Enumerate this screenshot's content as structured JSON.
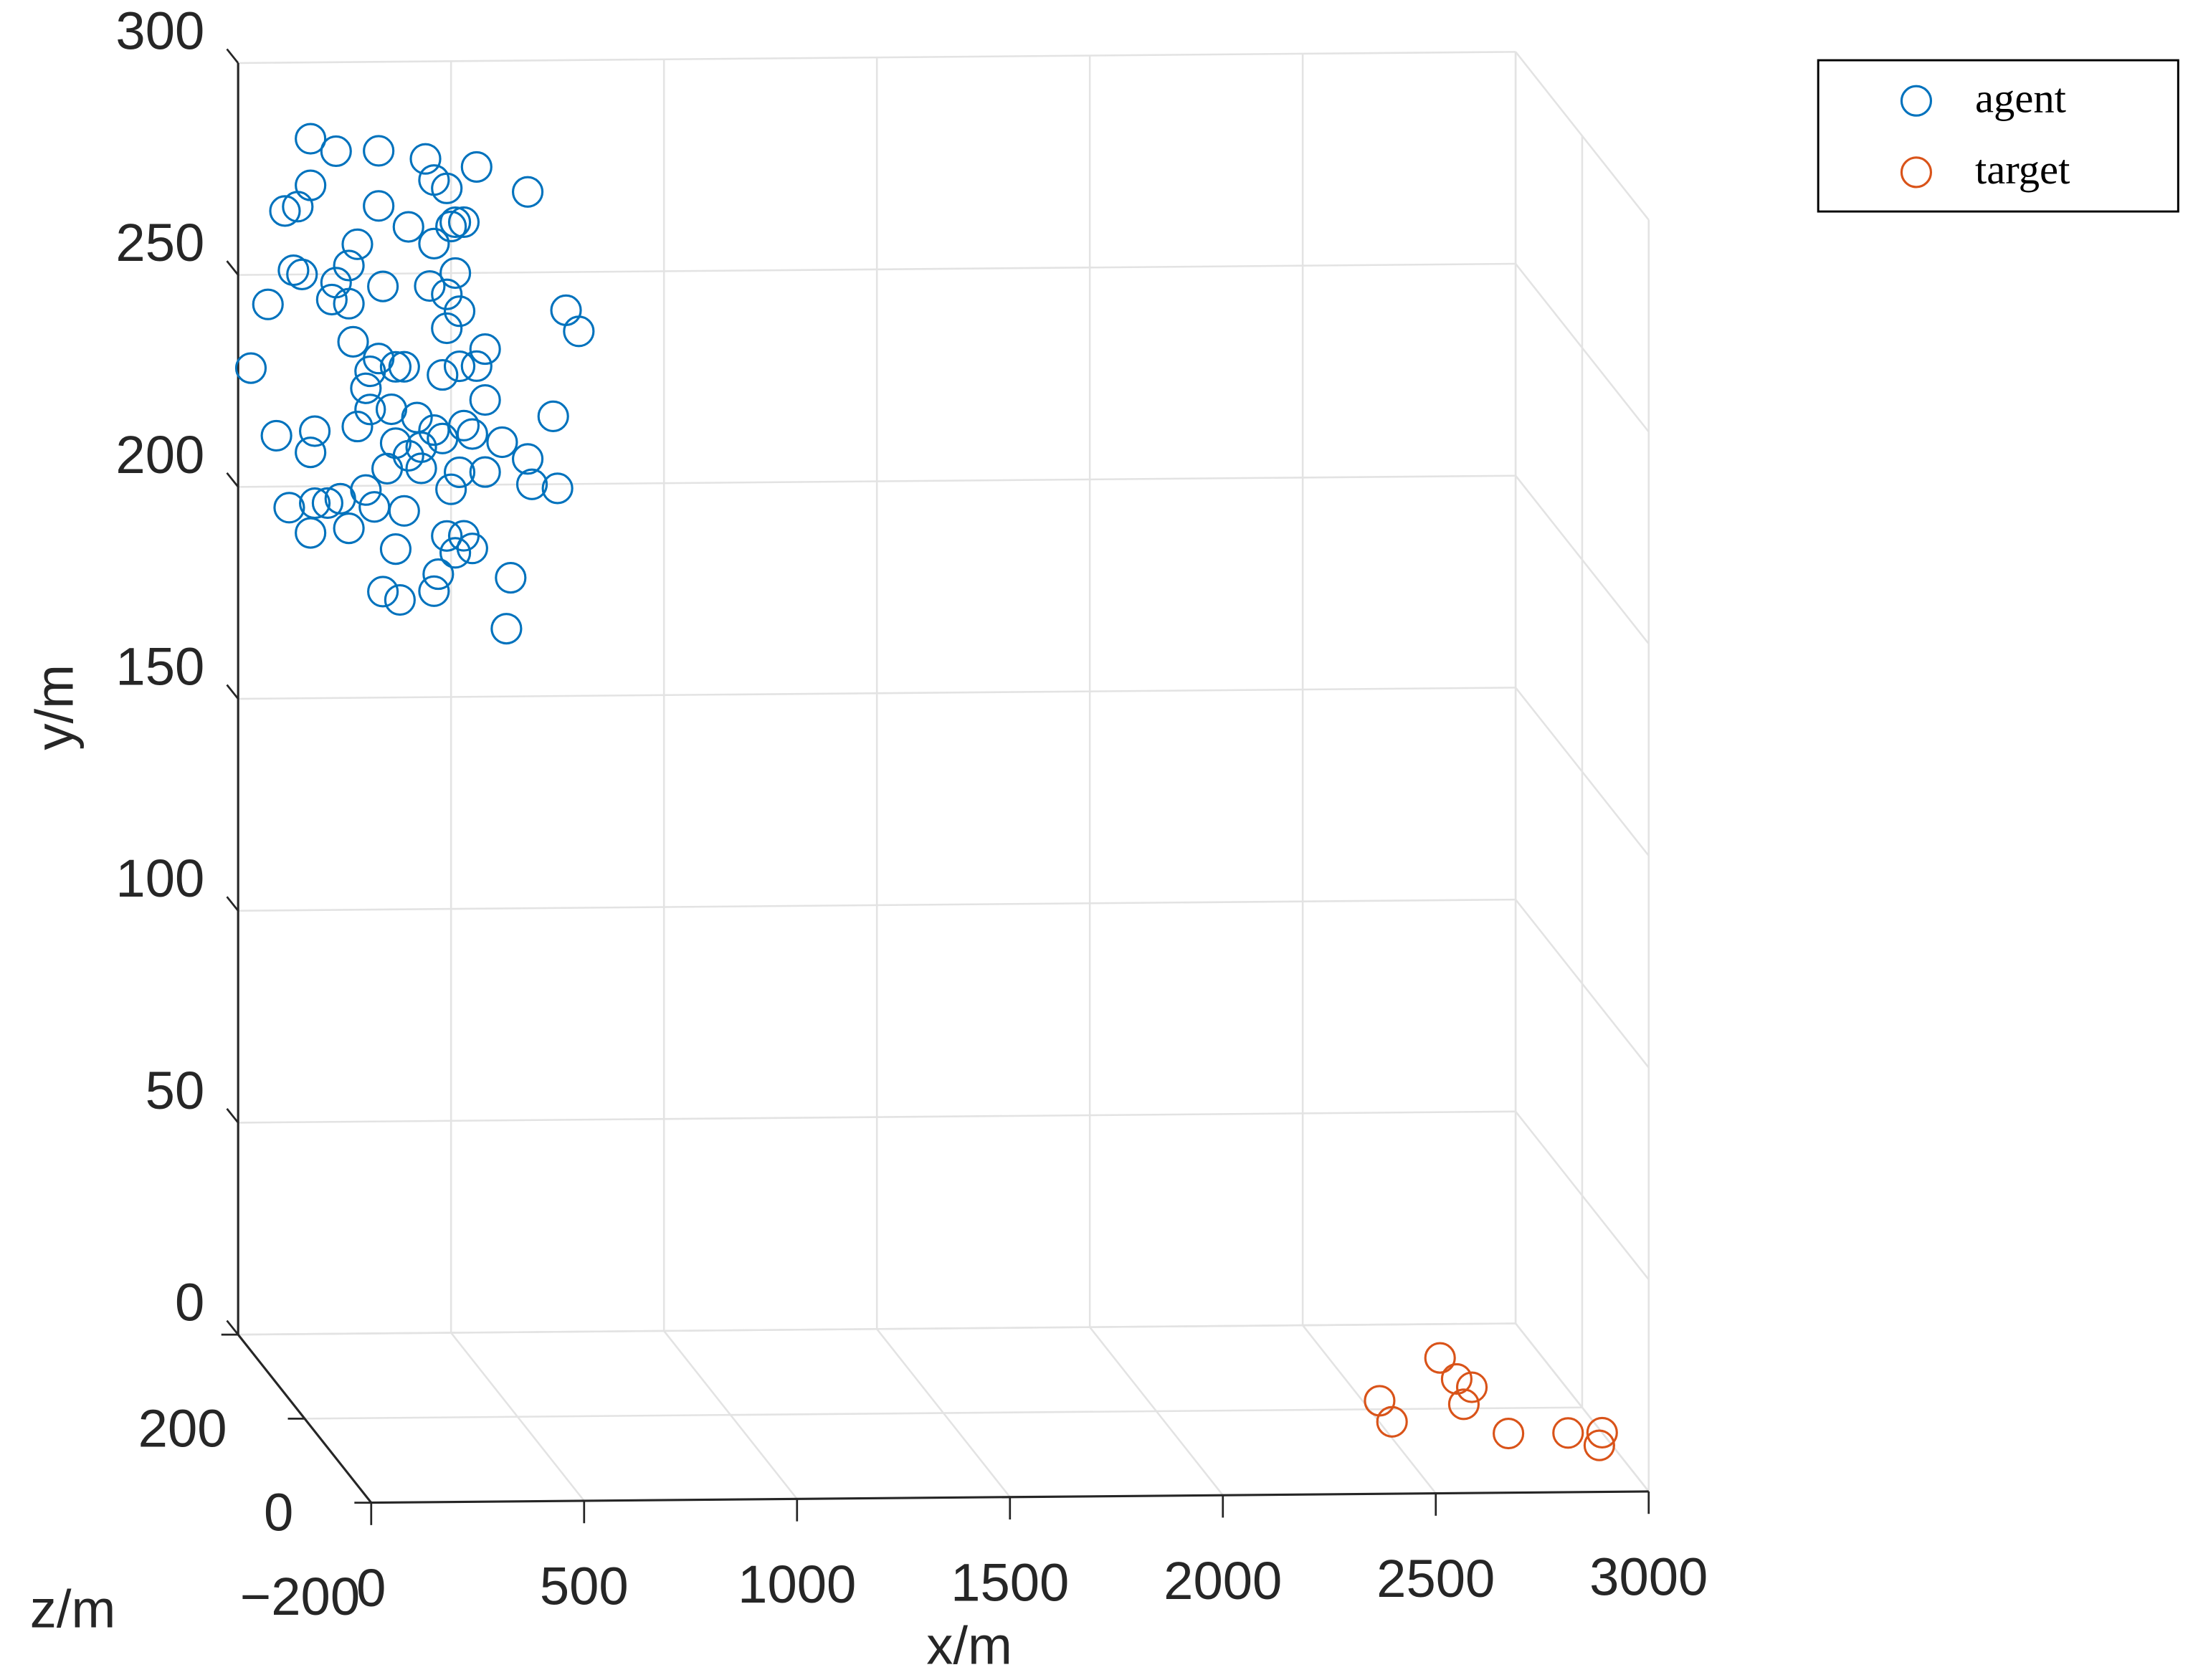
{
  "chart_data": {
    "type": "scatter3",
    "xlabel": "x/m",
    "ylabel": "y/m",
    "zlabel": "z/m",
    "xlim": [
      0,
      3000
    ],
    "ylim": [
      0,
      300
    ],
    "zlim": [
      -200,
      200
    ],
    "xticks": [
      0,
      500,
      1000,
      1500,
      2000,
      2500,
      3000
    ],
    "yticks": [
      0,
      50,
      100,
      150,
      200,
      250,
      300
    ],
    "zticks": [
      {
        "value": -200,
        "label": "−200"
      },
      0,
      200
    ],
    "grid": true,
    "legend_location": "northeastoutside",
    "series": [
      {
        "name": "agent",
        "color": "#0072bd",
        "x": [
          170,
          230,
          330,
          440,
          560,
          170,
          140,
          110,
          460,
          490,
          680,
          330,
          400,
          510,
          530,
          500,
          280,
          460,
          260,
          130,
          150,
          510,
          230,
          340,
          450,
          490,
          70,
          220,
          260,
          520,
          770,
          800,
          490,
          270,
          580,
          330,
          30,
          390,
          310,
          370,
          520,
          560,
          300,
          480,
          580,
          310,
          360,
          420,
          90,
          180,
          280,
          460,
          740,
          530,
          550,
          170,
          370,
          400,
          430,
          480,
          620,
          680,
          350,
          430,
          520,
          580,
          690,
          750,
          300,
          240,
          180,
          210,
          120,
          320,
          500,
          390,
          170,
          260,
          490,
          530,
          550,
          370,
          470,
          640,
          340,
          380,
          460,
          630,
          510
        ],
        "y": [
          282,
          279,
          279,
          277,
          275,
          271,
          266,
          265,
          272,
          270,
          269,
          266,
          261,
          262,
          262,
          261,
          257,
          257,
          252,
          251,
          250,
          250,
          248,
          247,
          247,
          245,
          243,
          244,
          243,
          241,
          241,
          236,
          237,
          234,
          232,
          230,
          228,
          228,
          227,
          228,
          228,
          228,
          223,
          226,
          220,
          218,
          218,
          216,
          212,
          213,
          214,
          213,
          216,
          214,
          212,
          208,
          210,
          207,
          209,
          211,
          210,
          206,
          204,
          204,
          203,
          203,
          200,
          199,
          199,
          197,
          196,
          196,
          195,
          195,
          199,
          194,
          189,
          190,
          188,
          188,
          185,
          185,
          179,
          178,
          175,
          173,
          175,
          166,
          184
        ],
        "z": [
          200,
          200,
          200,
          200,
          200,
          200,
          200,
          200,
          200,
          200,
          200,
          200,
          200,
          200,
          200,
          200,
          200,
          200,
          200,
          200,
          200,
          200,
          200,
          200,
          200,
          200,
          200,
          200,
          200,
          200,
          200,
          200,
          200,
          200,
          200,
          200,
          200,
          200,
          200,
          200,
          200,
          200,
          200,
          200,
          200,
          200,
          200,
          200,
          200,
          200,
          200,
          200,
          200,
          200,
          200,
          200,
          200,
          200,
          200,
          200,
          200,
          200,
          200,
          200,
          200,
          200,
          200,
          200,
          200,
          200,
          200,
          200,
          200,
          200,
          200,
          200,
          200,
          200,
          200,
          200,
          200,
          200,
          200,
          200,
          200,
          200,
          200,
          200,
          200
        ]
      },
      {
        "name": "target",
        "color": "#d95319",
        "x": [
          2760,
          2760,
          2780,
          2540,
          2530,
          2730,
          2780,
          2920,
          3000,
          2970
        ],
        "y": [
          0,
          0,
          0,
          0,
          0,
          0,
          0,
          0,
          0,
          0
        ],
        "z": [
          120,
          70,
          50,
          20,
          -30,
          10,
          -60,
          -60,
          -60,
          -90
        ]
      }
    ]
  }
}
